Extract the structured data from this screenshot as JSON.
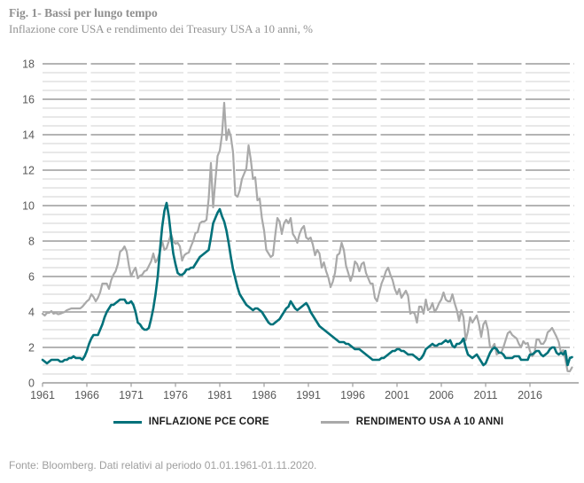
{
  "header": {
    "title": "Fig. 1- Bassi per lungo tempo",
    "subtitle": "Inflazione core USA e rendimento dei Treasury USA a 10 anni, %"
  },
  "footer": {
    "source": "Fonte: Bloomberg. Dati relativi al periodo 01.01.1961-01.11.2020."
  },
  "colors": {
    "teal": "#00717a",
    "gray_line": "#a9a9a9",
    "grid_major": "#9c9c9c",
    "grid_minor": "#d0d0d0",
    "axis_text": "#595959",
    "title_text": "#8f8f8f",
    "footer_text": "#9e9e9e",
    "legend_text": "#1c1c1c"
  },
  "chart_data": {
    "type": "line",
    "title": "Fig. 1- Bassi per lungo tempo",
    "subtitle": "Inflazione core USA e rendimento dei Treasury USA a 10 anni, %",
    "xlabel": "",
    "ylabel": "%",
    "xlim": [
      1961,
      2021
    ],
    "ylim": [
      0,
      18
    ],
    "x_ticks": [
      1961,
      1966,
      1971,
      1976,
      1981,
      1986,
      1991,
      1996,
      2001,
      2006,
      2011,
      2016
    ],
    "y_ticks": [
      0,
      2,
      4,
      6,
      8,
      10,
      12,
      14,
      16,
      18
    ],
    "grid": {
      "minor_step": 0.5,
      "major_step": 2,
      "dashed": true,
      "dash": "50 4.5"
    },
    "legend_position": "bottom",
    "x_start": 1961,
    "x_step_years": 0.25,
    "series": [
      {
        "name": "INFLAZIONE PCE CORE",
        "color": "#00717a",
        "values": [
          1.3,
          1.2,
          1.1,
          1.2,
          1.3,
          1.3,
          1.3,
          1.3,
          1.2,
          1.2,
          1.3,
          1.3,
          1.4,
          1.4,
          1.5,
          1.4,
          1.4,
          1.4,
          1.3,
          1.5,
          1.8,
          2.2,
          2.5,
          2.7,
          2.7,
          2.7,
          3.0,
          3.3,
          3.7,
          4.0,
          4.2,
          4.4,
          4.4,
          4.5,
          4.6,
          4.7,
          4.7,
          4.7,
          4.5,
          4.5,
          4.6,
          4.4,
          4.0,
          3.4,
          3.3,
          3.1,
          3.0,
          3.0,
          3.1,
          3.6,
          4.2,
          5.0,
          6.0,
          7.5,
          8.8,
          9.7,
          10.15,
          9.4,
          8.3,
          7.3,
          6.7,
          6.2,
          6.1,
          6.1,
          6.2,
          6.4,
          6.4,
          6.5,
          6.5,
          6.7,
          6.9,
          7.1,
          7.2,
          7.3,
          7.4,
          7.5,
          8.2,
          9.0,
          9.3,
          9.6,
          9.8,
          9.4,
          9.1,
          8.6,
          7.9,
          7.1,
          6.4,
          5.9,
          5.4,
          5.0,
          4.8,
          4.6,
          4.4,
          4.3,
          4.2,
          4.1,
          4.2,
          4.2,
          4.1,
          4.0,
          3.8,
          3.6,
          3.4,
          3.3,
          3.3,
          3.4,
          3.5,
          3.6,
          3.8,
          4.0,
          4.2,
          4.3,
          4.6,
          4.4,
          4.2,
          4.1,
          4.2,
          4.3,
          4.4,
          4.5,
          4.3,
          4.0,
          3.8,
          3.6,
          3.4,
          3.2,
          3.1,
          3.0,
          2.9,
          2.8,
          2.7,
          2.6,
          2.5,
          2.4,
          2.3,
          2.3,
          2.3,
          2.2,
          2.2,
          2.1,
          2.0,
          1.9,
          1.9,
          1.9,
          1.8,
          1.7,
          1.6,
          1.5,
          1.4,
          1.3,
          1.3,
          1.3,
          1.3,
          1.4,
          1.4,
          1.5,
          1.6,
          1.7,
          1.8,
          1.8,
          1.9,
          1.9,
          1.8,
          1.8,
          1.7,
          1.6,
          1.6,
          1.6,
          1.5,
          1.4,
          1.3,
          1.4,
          1.6,
          1.9,
          2.0,
          2.1,
          2.2,
          2.1,
          2.1,
          2.2,
          2.2,
          2.3,
          2.4,
          2.3,
          2.4,
          2.1,
          2.0,
          2.2,
          2.2,
          2.3,
          2.5,
          2.0,
          1.6,
          1.5,
          1.4,
          1.5,
          1.6,
          1.4,
          1.2,
          1.0,
          1.1,
          1.4,
          1.7,
          1.9,
          2.0,
          1.9,
          1.7,
          1.7,
          1.6,
          1.4,
          1.4,
          1.4,
          1.4,
          1.5,
          1.5,
          1.5,
          1.3,
          1.3,
          1.3,
          1.3,
          1.6,
          1.6,
          1.7,
          1.8,
          1.8,
          1.6,
          1.5,
          1.6,
          1.7,
          1.9,
          2.0,
          2.0,
          1.7,
          1.6,
          1.7,
          1.6,
          1.8,
          1.0,
          1.4,
          1.45
        ]
      },
      {
        "name": "RENDIMENTO USA A 10 ANNI",
        "color": "#a9a9a9",
        "values": [
          3.9,
          3.8,
          3.95,
          3.95,
          4.05,
          3.9,
          3.95,
          3.87,
          3.9,
          3.95,
          4.0,
          4.1,
          4.15,
          4.2,
          4.2,
          4.2,
          4.2,
          4.2,
          4.3,
          4.45,
          4.6,
          4.7,
          5.0,
          4.85,
          4.6,
          4.8,
          5.1,
          5.6,
          5.6,
          5.6,
          5.3,
          5.8,
          6.1,
          6.3,
          6.7,
          7.4,
          7.5,
          7.7,
          7.4,
          6.6,
          6.0,
          6.3,
          6.5,
          5.9,
          6.05,
          6.1,
          6.3,
          6.35,
          6.6,
          6.85,
          7.3,
          6.8,
          7.0,
          7.4,
          8.0,
          7.5,
          7.6,
          8.0,
          8.4,
          8.0,
          7.85,
          7.9,
          7.7,
          6.9,
          7.2,
          7.3,
          7.35,
          7.7,
          8.0,
          8.45,
          8.5,
          9.0,
          9.1,
          9.1,
          9.2,
          10.4,
          12.4,
          9.9,
          11.4,
          12.8,
          13.1,
          14.0,
          15.8,
          13.7,
          14.3,
          13.9,
          13.0,
          10.6,
          10.5,
          10.85,
          11.5,
          11.8,
          12.1,
          13.4,
          12.6,
          11.5,
          11.6,
          10.3,
          10.4,
          9.3,
          8.6,
          7.5,
          7.3,
          7.1,
          7.2,
          8.3,
          9.3,
          9.1,
          8.4,
          9.0,
          9.2,
          9.0,
          9.3,
          8.4,
          8.2,
          7.9,
          8.4,
          8.7,
          8.85,
          8.2,
          8.1,
          8.2,
          7.8,
          7.2,
          7.5,
          7.3,
          6.5,
          6.8,
          6.3,
          5.95,
          5.4,
          5.7,
          6.2,
          7.2,
          7.3,
          7.9,
          7.5,
          6.6,
          6.2,
          5.75,
          6.1,
          6.85,
          6.7,
          6.3,
          6.7,
          6.8,
          6.2,
          5.9,
          5.6,
          5.6,
          4.8,
          4.6,
          5.1,
          5.6,
          5.9,
          6.3,
          6.5,
          6.1,
          5.8,
          5.3,
          5.0,
          5.3,
          4.8,
          5.0,
          5.2,
          4.9,
          3.9,
          4.0,
          3.9,
          3.4,
          4.3,
          4.3,
          3.9,
          4.7,
          4.1,
          4.2,
          4.5,
          4.0,
          4.2,
          4.5,
          4.7,
          5.1,
          4.7,
          4.6,
          4.6,
          5.0,
          4.5,
          4.1,
          3.5,
          4.1,
          3.7,
          2.4,
          2.9,
          3.7,
          3.4,
          3.6,
          3.8,
          3.3,
          2.6,
          3.3,
          3.5,
          3.0,
          2.0,
          2.0,
          2.2,
          1.6,
          1.7,
          1.7,
          2.0,
          2.4,
          2.8,
          2.9,
          2.7,
          2.6,
          2.5,
          2.2,
          2.0,
          2.35,
          2.2,
          2.25,
          1.8,
          1.5,
          1.65,
          2.45,
          2.45,
          2.2,
          2.2,
          2.4,
          2.85,
          2.95,
          3.1,
          2.85,
          2.6,
          2.3,
          1.7,
          1.85,
          1.3,
          0.66,
          0.65,
          0.87
        ]
      }
    ]
  }
}
